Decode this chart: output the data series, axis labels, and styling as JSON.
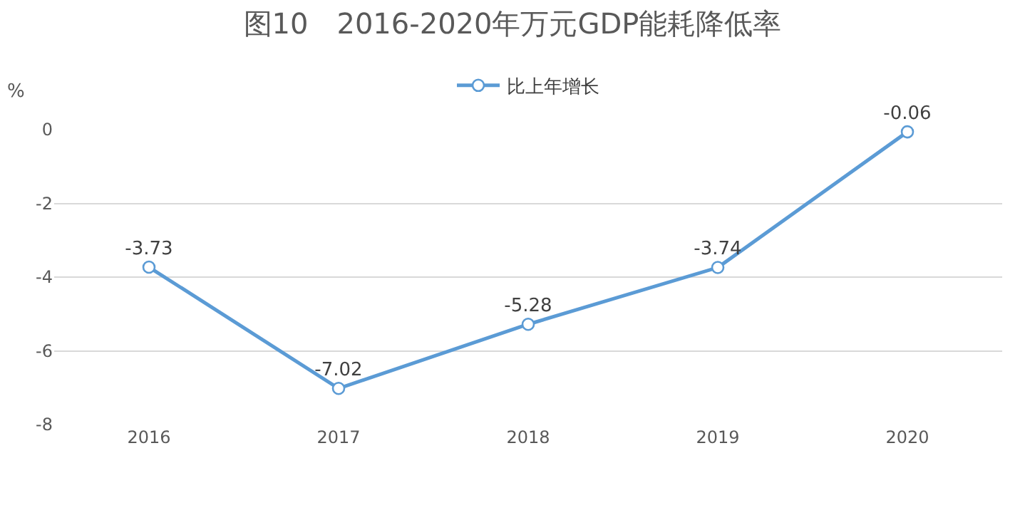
{
  "chart_data": {
    "type": "line",
    "title": "图10　2016-2020年万元GDP能耗降低率",
    "ylabel": "%",
    "categories": [
      "2016",
      "2017",
      "2018",
      "2019",
      "2020"
    ],
    "series": [
      {
        "name": "比上年增长",
        "color": "#5b9bd5",
        "values": [
          -3.73,
          -7.02,
          -5.28,
          -3.74,
          -0.06
        ]
      }
    ],
    "ylim": [
      -8,
      0
    ],
    "yticks": [
      0,
      -2,
      -4,
      -6,
      -8
    ],
    "grid": "y",
    "legend": "top",
    "marker": "circle",
    "line_style": "solid",
    "data_labels": true
  }
}
